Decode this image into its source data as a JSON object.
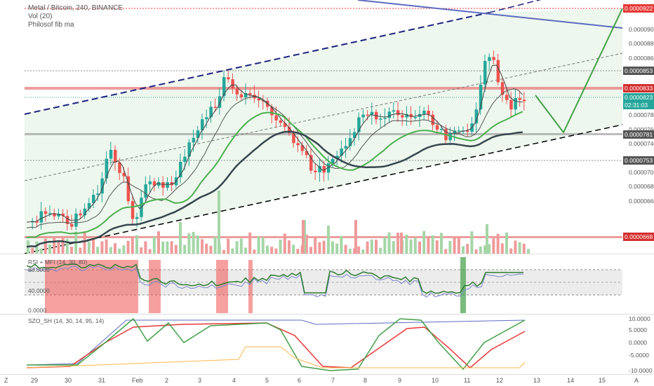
{
  "legend": {
    "symbol": "Metal / Bitcoin, 240, BINANCE",
    "vol": "Vol (20)",
    "fib": "Philosof fib ma"
  },
  "price_axis": {
    "labels": [
      "0.0000900",
      "0.0000880",
      "0.0000860",
      "0.0000840",
      "0.0000820",
      "0.0000800",
      "0.0000780",
      "0.0000760",
      "0.0000740",
      "0.0000720",
      "0.0000700",
      "0.0000680",
      "0.0000660"
    ],
    "tags": [
      {
        "text": "0.0000922",
        "color": "#e53935"
      },
      {
        "text": "0.0000853",
        "color": "#555555"
      },
      {
        "text": "0.0000833",
        "color": "#d32f2f"
      },
      {
        "text": "0.0000823",
        "color": "#26a69a"
      },
      {
        "text": "02:31:03",
        "color": "#26a69a"
      },
      {
        "text": "0.0000781",
        "color": "#555555"
      },
      {
        "text": "0.0000753",
        "color": "#555555"
      },
      {
        "text": "0.0000668",
        "color": "#d32f2f"
      }
    ]
  },
  "rsi": {
    "label": "RSI + MFI (14, 30, 80)",
    "axis": [
      "80.0000",
      "40.0000",
      "0.0000"
    ]
  },
  "szo": {
    "label": "SZO_SH (14, 30, 14, 95, 14)",
    "axis": [
      "10.0000",
      "5.0000",
      "0.0000",
      "-5.0000",
      "-10.0000"
    ]
  },
  "time_axis": {
    "labels": [
      "29",
      "30",
      "31",
      "Feb",
      "2",
      "3",
      "4",
      "5",
      "6",
      "7",
      "8",
      "9",
      "10",
      "11",
      "12",
      "13",
      "14",
      "15"
    ],
    "corner_left": "Z",
    "corner_right": "A"
  },
  "colors": {
    "bull": "#26a69a",
    "bear": "#ef5350",
    "channel_fill": "#e8f5e9",
    "trend_blue": "#5c6bc0",
    "projection_green": "#43a047"
  }
}
